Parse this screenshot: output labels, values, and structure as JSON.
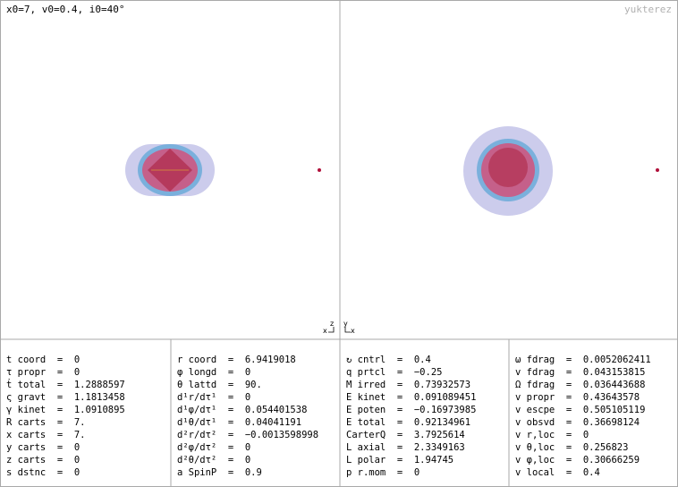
{
  "header": {
    "parameters": "x0=7, v0=0.4, i0=40°",
    "author": "yukterez"
  },
  "columns": [
    [
      "t coord  =  0",
      "τ propr  =  0",
      "ṫ total  =  1.2888597",
      "ς gravt  =  1.1813458",
      "γ kinet  =  1.0910895",
      "R carts  =  7.",
      "x carts  =  7.",
      "y carts  =  0",
      "z carts  =  0",
      "s dstnc  =  0"
    ],
    [
      "r coord  =  6.9419018",
      "φ longd  =  0",
      "θ lattd  =  90.",
      "d¹r/dτ¹  =  0",
      "d¹φ/dτ¹  =  0.054401538",
      "d¹θ/dτ¹  =  0.04041191",
      "d²r/dτ²  =  −0.0013598998",
      "d²φ/dτ²  =  0",
      "d²θ/dτ²  =  0",
      "a SpinP  =  0.9"
    ],
    [
      "↻ cntrl  =  0.4",
      "q prtcl  =  −0.25",
      "M irred  =  0.73932573",
      "E kinet  =  0.091089451",
      "E poten  =  −0.16973985",
      "E total  =  0.92134961",
      "CarterQ  =  3.7925614",
      "L axial  =  2.3349163",
      "L polar  =  1.94745",
      "p r.mom  =  0"
    ],
    [
      "ω fdrag  =  0.0052062411",
      "v fdrag  =  0.043153815",
      "Ω fdrag  =  0.036443688",
      "v propr  =  0.43643578",
      "v escpe  =  0.505105119",
      "v obsvd  =  0.36698124",
      "v r,loc  =  0",
      "v θ,loc  =  0.256823",
      "v φ,loc  =  0.30666259",
      "v local  =  0.4"
    ]
  ]
}
